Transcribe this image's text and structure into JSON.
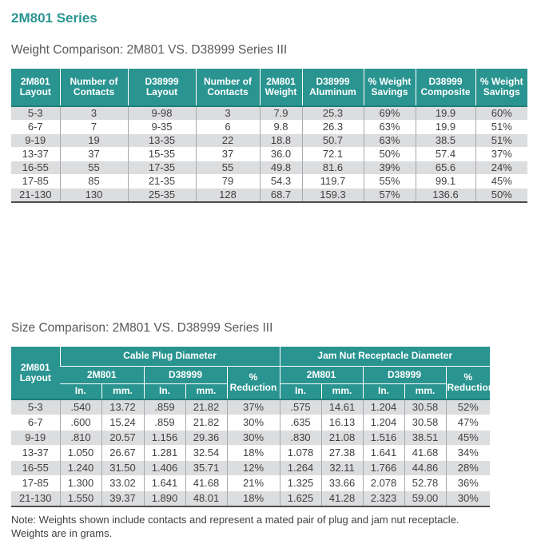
{
  "page": {
    "title": "2M801 Series",
    "note_line1": "Note: Weights shown include contacts and represent a mated pair of plug and jam nut receptacle.",
    "note_line2": "Weights are in grams."
  },
  "colors": {
    "teal": "#2a9491",
    "teal_dark": "#1e7f7b",
    "subtitle_gray": "#58595b",
    "cell_text": "#414042",
    "shaded_row": "#dcddde",
    "column_separator": "#a7a9ac",
    "table_bottom_border": "#4d4d4f"
  },
  "weight_table": {
    "title": "Weight Comparison: 2M801 VS. D38999 Series III",
    "headers": [
      "2M801 Layout",
      "Number of Contacts",
      "D38999 Layout",
      "Number of Contacts",
      "2M801 Weight",
      "D38999 Aluminum",
      "% Weight Savings",
      "D38999 Composite",
      "% Weight Savings"
    ],
    "rows": [
      [
        "5-3",
        "3",
        "9-98",
        "3",
        "7.9",
        "25.3",
        "69%",
        "19.9",
        "60%"
      ],
      [
        "6-7",
        "7",
        "9-35",
        "6",
        "9.8",
        "26.3",
        "63%",
        "19.9",
        "51%"
      ],
      [
        "9-19",
        "19",
        "13-35",
        "22",
        "18.8",
        "50.7",
        "63%",
        "38.5",
        "51%"
      ],
      [
        "13-37",
        "37",
        "15-35",
        "37",
        "36.0",
        "72.1",
        "50%",
        "57.4",
        "37%"
      ],
      [
        "16-55",
        "55",
        "17-35",
        "55",
        "49.8",
        "81.6",
        "39%",
        "65.6",
        "24%"
      ],
      [
        "17-85",
        "85",
        "21-35",
        "79",
        "54.3",
        "119.7",
        "55%",
        "99.1",
        "45%"
      ],
      [
        "21-130",
        "130",
        "25-35",
        "128",
        "68.7",
        "159.3",
        "57%",
        "136.6",
        "50%"
      ]
    ]
  },
  "size_table": {
    "title": "Size Comparison: 2M801 VS. D38999 Series III",
    "layout_header": "2M801 Layout",
    "group_cable_plug": "Cable Plug Diameter",
    "group_jam_nut": "Jam Nut Receptacle Diameter",
    "sub_2m801": "2M801",
    "sub_d38999": "D38999",
    "pct_reduction": "% Reduction",
    "unit_in": "In.",
    "unit_mm": "mm.",
    "rows": [
      [
        "5-3",
        ".540",
        "13.72",
        ".859",
        "21.82",
        "37%",
        ".575",
        "14.61",
        "1.204",
        "30.58",
        "52%"
      ],
      [
        "6-7",
        ".600",
        "15.24",
        ".859",
        "21.82",
        "30%",
        ".635",
        "16.13",
        "1.204",
        "30.58",
        "47%"
      ],
      [
        "9-19",
        ".810",
        "20.57",
        "1.156",
        "29.36",
        "30%",
        ".830",
        "21.08",
        "1.516",
        "38.51",
        "45%"
      ],
      [
        "13-37",
        "1.050",
        "26.67",
        "1.281",
        "32.54",
        "18%",
        "1.078",
        "27.38",
        "1.641",
        "41.68",
        "34%"
      ],
      [
        "16-55",
        "1.240",
        "31.50",
        "1.406",
        "35.71",
        "12%",
        "1.264",
        "32.11",
        "1.766",
        "44.86",
        "28%"
      ],
      [
        "17-85",
        "1.300",
        "33.02",
        "1.641",
        "41.68",
        "21%",
        "1.325",
        "33.66",
        "2.078",
        "52.78",
        "36%"
      ],
      [
        "21-130",
        "1.550",
        "39.37",
        "1.890",
        "48.01",
        "18%",
        "1.625",
        "41.28",
        "2.323",
        "59.00",
        "30%"
      ]
    ]
  }
}
